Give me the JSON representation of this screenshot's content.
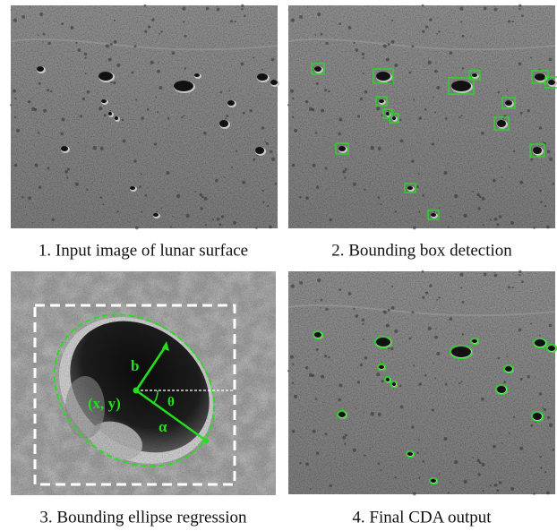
{
  "panels": [
    {
      "caption": "1. Input image of lunar surface"
    },
    {
      "caption": "2. Bounding box detection"
    },
    {
      "caption": "3. Bounding ellipse regression"
    },
    {
      "caption": "4. Final CDA output"
    }
  ],
  "annotations": {
    "b": "b",
    "center": "(x, y)",
    "theta": "θ",
    "alpha": "α"
  }
}
